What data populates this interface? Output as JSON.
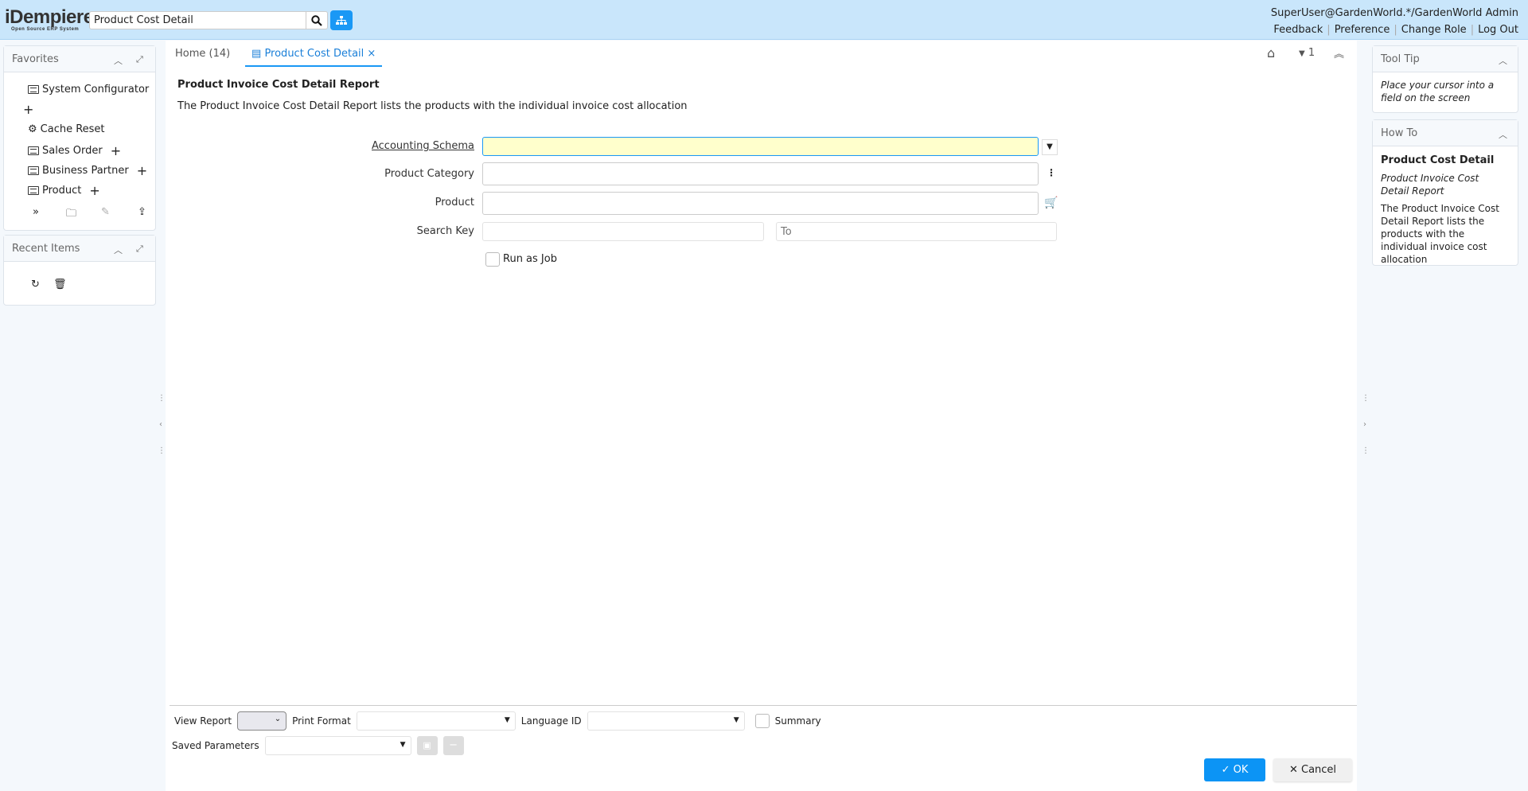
{
  "header": {
    "logo": "iDempiere",
    "logo_sub": "Open Source ERP System",
    "search_value": "Product Cost Detail",
    "user": "SuperUser@GardenWorld.*/GardenWorld Admin",
    "links": [
      "Feedback",
      "Preference",
      "Change Role",
      "Log Out"
    ]
  },
  "favorites": {
    "title": "Favorites",
    "items": [
      "System Configurator",
      "Cache Reset",
      "Sales Order",
      "Business Partner",
      "Product"
    ]
  },
  "recent": {
    "title": "Recent Items"
  },
  "tabs": {
    "home": "Home (14)",
    "active": "Product Cost Detail",
    "window_count": "1"
  },
  "process": {
    "title": "Product Invoice Cost Detail Report",
    "description": "The Product Invoice Cost Detail Report lists the products with the individual invoice cost allocation"
  },
  "form": {
    "accounting_schema": "Accounting Schema",
    "product_category": "Product Category",
    "product": "Product",
    "search_key": "Search Key",
    "to_placeholder": "To",
    "run_as_job": "Run as Job"
  },
  "bottom": {
    "view_report": "View Report",
    "print_format": "Print Format",
    "language_id": "Language ID",
    "summary": "Summary",
    "saved_parameters": "Saved Parameters",
    "ok": "OK",
    "cancel": "Cancel"
  },
  "tooltip": {
    "title": "Tool Tip",
    "text": "Place your cursor into a field on the screen"
  },
  "howto": {
    "title": "How To",
    "heading": "Product Cost Detail",
    "subtitle": "Product Invoice Cost Detail Report",
    "text": "The Product Invoice Cost Detail Report lists the products with the individual invoice cost allocation"
  },
  "colors": {
    "header_bg": "#c9e6fb",
    "accent": "#1a98f5",
    "mandatory_bg": "#ffffcc"
  }
}
